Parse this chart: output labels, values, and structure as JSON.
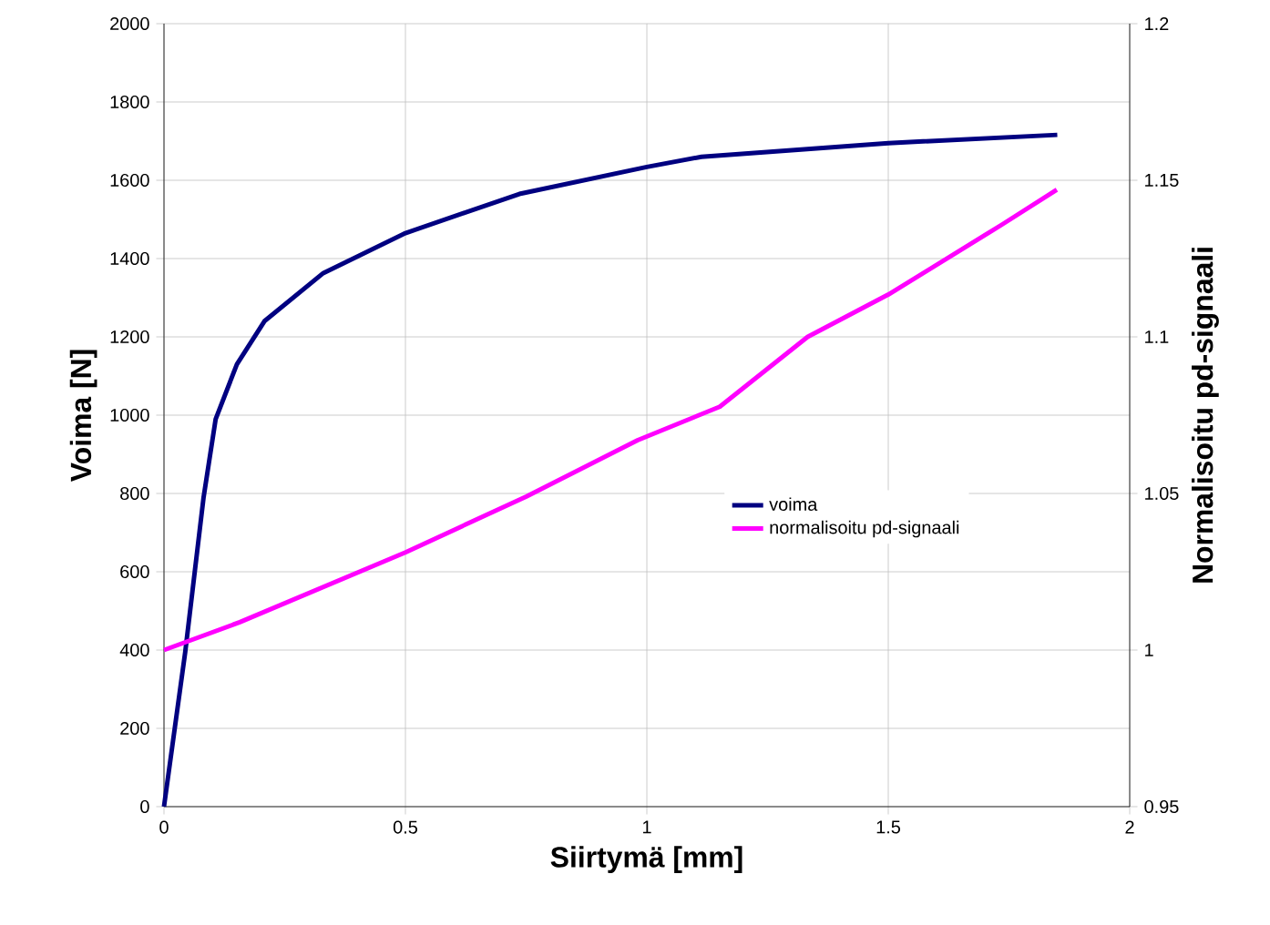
{
  "chart_data": {
    "type": "line",
    "xlabel": "Siirtymä [mm]",
    "ylabel": "Voima [N]",
    "y2label": "Normalisoitu pd-signaali",
    "xlim": [
      0,
      2
    ],
    "xticks": [
      0,
      0.5,
      1,
      1.5,
      2
    ],
    "ylim": [
      0,
      2000
    ],
    "yticks": [
      0,
      200,
      400,
      600,
      800,
      1000,
      1200,
      1400,
      1600,
      1800,
      2000
    ],
    "y2lim": [
      0.95,
      1.2
    ],
    "y2ticks": [
      0.95,
      1,
      1.05,
      1.1,
      1.15,
      1.2
    ],
    "grid": true,
    "legend": "right",
    "marker": "none",
    "series": [
      {
        "name": "voima",
        "color": "#000080",
        "x": [
          0,
          0.044,
          0.082,
          0.107,
          0.151,
          0.208,
          0.33,
          0.5,
          0.736,
          1.0,
          1.113,
          1.5,
          1.85
        ],
        "values": [
          0,
          395,
          790,
          990,
          1130,
          1240,
          1363,
          1465,
          1565,
          1634,
          1660,
          1695,
          1716
        ]
      },
      {
        "name": "normalisoitu pd-signaali",
        "color": "#ff00ff",
        "axis": "y2",
        "x": [
          0,
          0.157,
          0.5,
          0.75,
          0.981,
          1.151,
          1.333,
          1.5,
          1.736,
          1.849
        ],
        "values": [
          1.0,
          1.0089,
          1.0312,
          1.049,
          1.067,
          1.0777,
          1.1,
          1.1135,
          1.1359,
          1.147
        ]
      }
    ]
  }
}
